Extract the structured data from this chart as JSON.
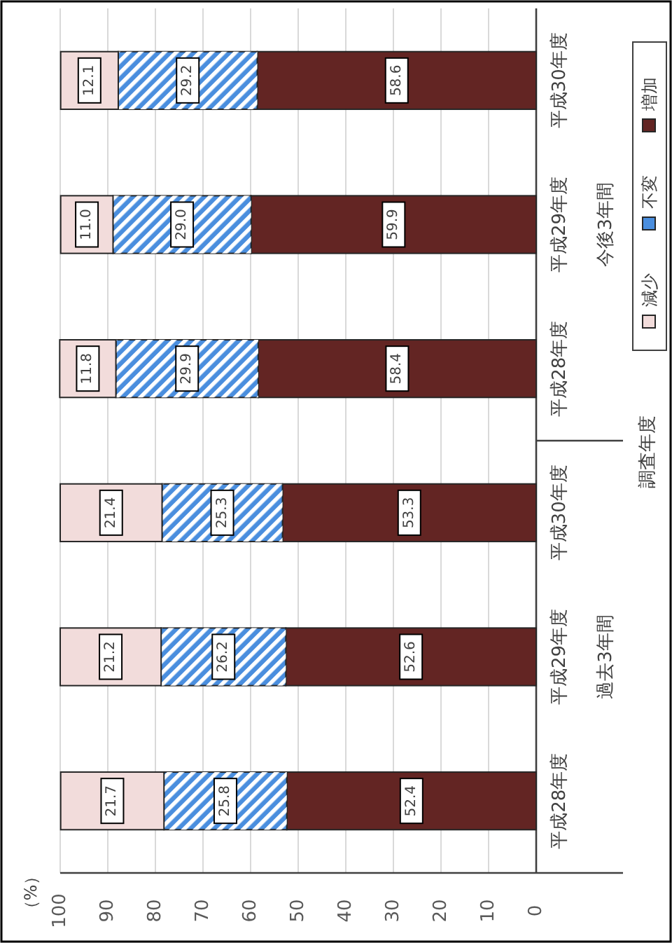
{
  "chart_data": {
    "type": "bar",
    "orientation": "horizontal",
    "stacked": true,
    "ylabel": "調査年度",
    "categories": [
      "平成30年度",
      "平成29年度",
      "平成28年度",
      "平成30年度",
      "平成29年度",
      "平成28年度"
    ],
    "annotations": [
      "今後3年間",
      "過去3年間",
      "（%）"
    ],
    "series": [
      {
        "name": "増加",
        "color": "#632523",
        "values": [
          58.6,
          59.9,
          58.4,
          53.3,
          52.6,
          52.4
        ],
        "value_labels": [
          "58.6",
          "59.9",
          "58.4",
          "53.3",
          "52.6",
          "52.4"
        ]
      },
      {
        "name": "不変",
        "color": "#4a8ede",
        "values": [
          29.2,
          29.0,
          29.9,
          25.3,
          26.2,
          25.8
        ],
        "value_labels": [
          "29.2",
          "29.0",
          "29.9",
          "25.3",
          "26.2",
          "25.8"
        ]
      },
      {
        "name": "減少",
        "color": "#f2dcdb",
        "values": [
          12.1,
          11.0,
          11.8,
          21.4,
          21.2,
          21.7
        ],
        "value_labels": [
          "12.1",
          "11.0",
          "11.8",
          "21.4",
          "21.2",
          "21.7"
        ]
      }
    ],
    "xlim": [
      100,
      0
    ],
    "xticks": [
      100,
      90,
      80,
      70,
      60,
      50,
      40,
      30,
      20,
      10,
      0
    ],
    "grid": "x",
    "legend": "right"
  }
}
